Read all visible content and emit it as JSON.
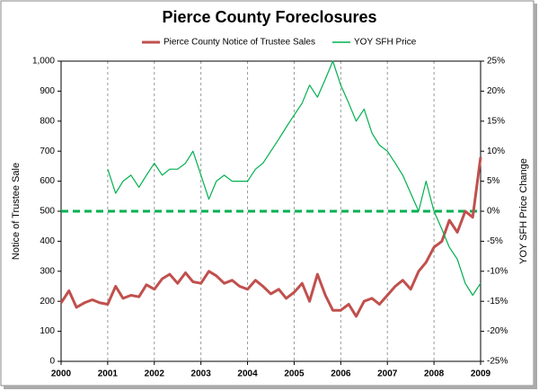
{
  "chart_data": {
    "type": "line",
    "title": "Pierce County Foreclosures",
    "ylabel": "Notice of Trustee Sale",
    "y2label": "YOY SFH Price Change",
    "x": [
      2000,
      2000.17,
      2000.33,
      2000.5,
      2000.67,
      2000.83,
      2001,
      2001.17,
      2001.33,
      2001.5,
      2001.67,
      2001.83,
      2002,
      2002.17,
      2002.33,
      2002.5,
      2002.67,
      2002.83,
      2003,
      2003.17,
      2003.33,
      2003.5,
      2003.67,
      2003.83,
      2004,
      2004.17,
      2004.33,
      2004.5,
      2004.67,
      2004.83,
      2005,
      2005.17,
      2005.33,
      2005.5,
      2005.67,
      2005.83,
      2006,
      2006.17,
      2006.33,
      2006.5,
      2006.67,
      2006.83,
      2007,
      2007.17,
      2007.33,
      2007.5,
      2007.67,
      2007.83,
      2008,
      2008.17,
      2008.33,
      2008.5,
      2008.67,
      2008.83,
      2009
    ],
    "series": [
      {
        "name": "Pierce County Notice of Trustee Sales",
        "color": "#c0504d",
        "axis": "y",
        "values": [
          195,
          235,
          180,
          195,
          205,
          195,
          190,
          250,
          210,
          220,
          215,
          255,
          240,
          275,
          290,
          260,
          295,
          265,
          260,
          300,
          285,
          260,
          270,
          250,
          240,
          270,
          250,
          225,
          240,
          210,
          230,
          260,
          200,
          290,
          220,
          170,
          170,
          190,
          150,
          200,
          210,
          190,
          220,
          250,
          270,
          240,
          300,
          330,
          380,
          400,
          470,
          430,
          500,
          480,
          680
        ]
      },
      {
        "name": "YOY SFH Price",
        "color": "#00b050",
        "axis": "y2",
        "values": [
          null,
          null,
          null,
          null,
          null,
          null,
          7,
          3,
          5,
          6,
          4,
          6,
          8,
          6,
          7,
          7,
          8,
          10,
          6,
          2,
          5,
          6,
          5,
          5,
          5,
          7,
          8,
          10,
          12,
          14,
          16,
          18,
          21,
          19,
          22,
          25,
          21,
          18,
          15,
          17,
          13,
          11,
          10,
          8,
          6,
          3,
          0,
          5,
          0,
          -3,
          -6,
          -8,
          -12,
          -14,
          -12
        ]
      }
    ],
    "xlim": [
      2000,
      2009
    ],
    "xticks": [
      2000,
      2001,
      2002,
      2003,
      2004,
      2005,
      2006,
      2007,
      2008,
      2009
    ],
    "ylim": [
      0,
      1000
    ],
    "yticks": [
      0,
      100,
      200,
      300,
      400,
      500,
      600,
      700,
      800,
      900,
      {
        "value": 1000,
        "label": "1,000"
      }
    ],
    "y2lim": [
      -25,
      25
    ],
    "y2ticks": [
      {
        "value": -25,
        "label": "-25%"
      },
      {
        "value": -20,
        "label": "-20%"
      },
      {
        "value": -15,
        "label": "-15%"
      },
      {
        "value": -10,
        "label": "-10%"
      },
      {
        "value": -5,
        "label": "-5%"
      },
      {
        "value": 0,
        "label": "0%"
      },
      {
        "value": 5,
        "label": "5%"
      },
      {
        "value": 10,
        "label": "10%"
      },
      {
        "value": 15,
        "label": "15%"
      },
      {
        "value": 20,
        "label": "20%"
      },
      {
        "value": 25,
        "label": "25%"
      }
    ],
    "reference_lines": [
      {
        "axis": "y2",
        "value": 0,
        "color": "#00b050",
        "dashed": true
      }
    ],
    "grid": "x",
    "legend": "top"
  }
}
